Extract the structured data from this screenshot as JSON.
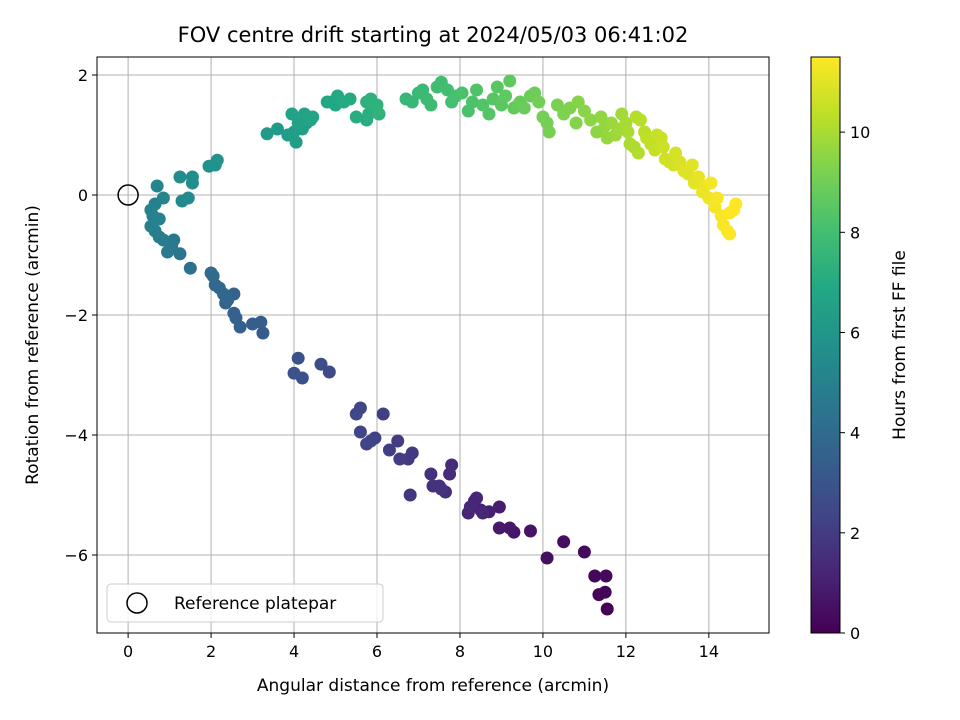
{
  "chart_data": {
    "type": "scatter",
    "title": "FOV centre drift starting at 2024/05/03 06:41:02",
    "xlabel": "Angular distance from reference (arcmin)",
    "ylabel": "Rotation from reference (arcmin)",
    "colorbar_label": "Hours from first FF file",
    "xlim": [
      -0.75,
      15.45
    ],
    "ylim": [
      -7.3,
      2.3
    ],
    "x_ticks": [
      "0",
      "2",
      "4",
      "6",
      "8",
      "10",
      "12",
      "14"
    ],
    "x_tick_values": [
      0,
      2,
      4,
      6,
      8,
      10,
      12,
      14
    ],
    "y_ticks": [
      "−6",
      "−4",
      "−2",
      "0",
      "2"
    ],
    "y_tick_values": [
      -6,
      -4,
      -2,
      0,
      2
    ],
    "colorbar_range": [
      0,
      11.5
    ],
    "colorbar_ticks": [
      "0",
      "2",
      "4",
      "6",
      "8",
      "10"
    ],
    "colorbar_tick_values": [
      0,
      2,
      4,
      6,
      8,
      10
    ],
    "colormap": "viridis",
    "grid": true,
    "legend": {
      "placement": "lower-left",
      "entries": [
        "Reference platepar"
      ]
    },
    "reference_point": {
      "x": 0,
      "y": 0
    },
    "points": [
      [
        11.55,
        -6.9,
        0.05
      ],
      [
        11.5,
        -6.62,
        0.1
      ],
      [
        11.35,
        -6.66,
        0.15
      ],
      [
        11.25,
        -6.35,
        0.2
      ],
      [
        11.52,
        -6.35,
        0.25
      ],
      [
        11.0,
        -5.95,
        0.3
      ],
      [
        10.5,
        -5.78,
        0.4
      ],
      [
        10.1,
        -6.05,
        0.5
      ],
      [
        9.7,
        -5.6,
        0.6
      ],
      [
        9.3,
        -5.62,
        0.7
      ],
      [
        9.2,
        -5.55,
        0.72
      ],
      [
        8.95,
        -5.55,
        0.8
      ],
      [
        8.95,
        -5.2,
        0.9
      ],
      [
        8.7,
        -5.28,
        1.0
      ],
      [
        8.5,
        -5.25,
        1.05
      ],
      [
        8.35,
        -5.1,
        1.1
      ],
      [
        8.2,
        -5.3,
        1.15
      ],
      [
        8.4,
        -5.05,
        1.2
      ],
      [
        8.25,
        -5.2,
        1.25
      ],
      [
        8.55,
        -5.3,
        1.3
      ],
      [
        7.8,
        -4.5,
        1.4
      ],
      [
        7.75,
        -4.65,
        1.45
      ],
      [
        7.65,
        -4.95,
        1.5
      ],
      [
        7.5,
        -4.85,
        1.55
      ],
      [
        7.3,
        -4.65,
        1.6
      ],
      [
        7.35,
        -4.85,
        1.65
      ],
      [
        7.55,
        -4.9,
        1.7
      ],
      [
        6.8,
        -5.0,
        1.8
      ],
      [
        6.85,
        -4.3,
        1.9
      ],
      [
        6.75,
        -4.4,
        1.95
      ],
      [
        6.5,
        -4.1,
        2.0
      ],
      [
        6.55,
        -4.4,
        2.05
      ],
      [
        6.3,
        -4.25,
        2.1
      ],
      [
        6.15,
        -3.65,
        2.15
      ],
      [
        5.95,
        -4.05,
        2.2
      ],
      [
        5.85,
        -4.1,
        2.25
      ],
      [
        5.75,
        -4.15,
        2.3
      ],
      [
        5.6,
        -3.95,
        2.35
      ],
      [
        5.6,
        -3.55,
        2.4
      ],
      [
        5.5,
        -3.65,
        2.45
      ],
      [
        4.85,
        -2.95,
        2.6
      ],
      [
        4.65,
        -2.82,
        2.7
      ],
      [
        4.2,
        -3.05,
        2.8
      ],
      [
        4.1,
        -2.72,
        2.85
      ],
      [
        4.0,
        -2.97,
        2.9
      ],
      [
        3.25,
        -2.3,
        3.3
      ],
      [
        3.2,
        -2.12,
        3.35
      ],
      [
        3.0,
        -2.15,
        3.4
      ],
      [
        2.7,
        -2.2,
        3.5
      ],
      [
        2.6,
        -2.05,
        3.55
      ],
      [
        2.55,
        -1.97,
        3.6
      ],
      [
        2.55,
        -1.65,
        3.65
      ],
      [
        2.35,
        -1.8,
        3.7
      ],
      [
        2.4,
        -1.75,
        3.75
      ],
      [
        2.3,
        -1.65,
        3.8
      ],
      [
        2.2,
        -1.55,
        3.85
      ],
      [
        2.1,
        -1.5,
        3.9
      ],
      [
        2.05,
        -1.35,
        3.95
      ],
      [
        2.0,
        -1.3,
        4.0
      ],
      [
        1.5,
        -1.22,
        4.3
      ],
      [
        1.25,
        -0.98,
        4.5
      ],
      [
        1.1,
        -0.75,
        4.6
      ],
      [
        1.05,
        -0.85,
        4.65
      ],
      [
        0.95,
        -0.95,
        4.7
      ],
      [
        0.85,
        -0.75,
        4.75
      ],
      [
        0.75,
        -0.7,
        4.8
      ],
      [
        0.65,
        -0.6,
        4.85
      ],
      [
        0.55,
        -0.52,
        4.9
      ],
      [
        0.6,
        -0.35,
        4.95
      ],
      [
        0.65,
        -0.15,
        5.0
      ],
      [
        0.75,
        -0.4,
        5.05
      ],
      [
        0.55,
        -0.25,
        5.1
      ],
      [
        0.85,
        -0.05,
        5.15
      ],
      [
        0.7,
        0.15,
        5.2
      ],
      [
        1.3,
        -0.1,
        5.4
      ],
      [
        1.45,
        -0.05,
        5.45
      ],
      [
        1.25,
        0.3,
        5.5
      ],
      [
        1.55,
        0.2,
        5.55
      ],
      [
        1.55,
        0.3,
        5.6
      ],
      [
        1.95,
        0.48,
        5.75
      ],
      [
        2.1,
        0.5,
        5.8
      ],
      [
        2.15,
        0.58,
        5.85
      ],
      [
        3.35,
        1.02,
        6.2
      ],
      [
        3.6,
        1.1,
        6.25
      ],
      [
        3.85,
        1.0,
        6.3
      ],
      [
        4.0,
        1.05,
        6.35
      ],
      [
        4.05,
        0.88,
        6.4
      ],
      [
        4.2,
        1.1,
        6.45
      ],
      [
        4.3,
        1.2,
        6.5
      ],
      [
        4.1,
        1.2,
        6.55
      ],
      [
        3.95,
        1.35,
        6.6
      ],
      [
        4.25,
        1.35,
        6.65
      ],
      [
        4.4,
        1.25,
        6.7
      ],
      [
        4.45,
        1.3,
        6.72
      ],
      [
        4.8,
        1.55,
        6.8
      ],
      [
        4.9,
        1.55,
        6.85
      ],
      [
        5.0,
        1.5,
        6.9
      ],
      [
        5.05,
        1.65,
        6.95
      ],
      [
        5.2,
        1.55,
        7.0
      ],
      [
        5.35,
        1.6,
        7.05
      ],
      [
        5.5,
        1.3,
        7.1
      ],
      [
        5.75,
        1.25,
        7.15
      ],
      [
        5.8,
        1.35,
        7.2
      ],
      [
        5.9,
        1.45,
        7.25
      ],
      [
        5.75,
        1.55,
        7.3
      ],
      [
        5.85,
        1.6,
        7.35
      ],
      [
        6.0,
        1.5,
        7.4
      ],
      [
        6.05,
        1.35,
        7.45
      ],
      [
        6.7,
        1.6,
        7.6
      ],
      [
        6.85,
        1.55,
        7.65
      ],
      [
        7.0,
        1.7,
        7.7
      ],
      [
        7.1,
        1.75,
        7.75
      ],
      [
        7.2,
        1.6,
        7.8
      ],
      [
        7.3,
        1.5,
        7.85
      ],
      [
        7.45,
        1.8,
        7.9
      ],
      [
        7.55,
        1.88,
        7.95
      ],
      [
        7.7,
        1.75,
        8.0
      ],
      [
        7.8,
        1.55,
        8.05
      ],
      [
        7.9,
        1.65,
        8.1
      ],
      [
        8.05,
        1.7,
        8.15
      ],
      [
        8.2,
        1.4,
        8.2
      ],
      [
        8.3,
        1.55,
        8.25
      ],
      [
        8.4,
        1.75,
        8.3
      ],
      [
        8.55,
        1.5,
        8.35
      ],
      [
        8.7,
        1.35,
        8.4
      ],
      [
        8.8,
        1.6,
        8.45
      ],
      [
        8.9,
        1.8,
        8.5
      ],
      [
        9.0,
        1.5,
        8.55
      ],
      [
        9.1,
        1.65,
        8.6
      ],
      [
        9.2,
        1.9,
        8.65
      ],
      [
        9.3,
        1.45,
        8.7
      ],
      [
        9.4,
        1.5,
        8.75
      ],
      [
        9.45,
        1.55,
        8.8
      ],
      [
        9.55,
        1.45,
        8.85
      ],
      [
        9.7,
        1.65,
        8.9
      ],
      [
        9.8,
        1.7,
        8.95
      ],
      [
        9.9,
        1.55,
        9.0
      ],
      [
        10.0,
        1.3,
        9.05
      ],
      [
        10.1,
        1.2,
        9.1
      ],
      [
        10.15,
        1.05,
        9.15
      ],
      [
        10.35,
        1.5,
        9.2
      ],
      [
        10.5,
        1.35,
        9.25
      ],
      [
        10.65,
        1.45,
        9.3
      ],
      [
        10.8,
        1.2,
        9.35
      ],
      [
        10.85,
        1.55,
        9.4
      ],
      [
        11.0,
        1.4,
        9.45
      ],
      [
        11.15,
        1.25,
        9.5
      ],
      [
        11.3,
        1.05,
        9.55
      ],
      [
        11.4,
        1.3,
        9.6
      ],
      [
        11.5,
        1.15,
        9.65
      ],
      [
        11.55,
        0.95,
        9.7
      ],
      [
        11.65,
        1.2,
        9.75
      ],
      [
        11.75,
        1.0,
        9.8
      ],
      [
        11.85,
        1.1,
        9.85
      ],
      [
        11.9,
        1.35,
        9.9
      ],
      [
        12.0,
        1.2,
        9.95
      ],
      [
        12.05,
        1.05,
        10.0
      ],
      [
        12.1,
        0.85,
        10.05
      ],
      [
        12.2,
        0.8,
        10.1
      ],
      [
        12.3,
        0.7,
        10.15
      ],
      [
        12.25,
        1.3,
        10.2
      ],
      [
        12.35,
        1.25,
        10.25
      ],
      [
        12.45,
        1.05,
        10.3
      ],
      [
        12.5,
        0.95,
        10.35
      ],
      [
        12.6,
        0.85,
        10.4
      ],
      [
        12.7,
        0.75,
        10.45
      ],
      [
        12.75,
        1.0,
        10.5
      ],
      [
        12.85,
        0.95,
        10.55
      ],
      [
        12.9,
        0.8,
        10.6
      ],
      [
        12.95,
        0.6,
        10.65
      ],
      [
        13.05,
        0.55,
        10.7
      ],
      [
        13.15,
        0.5,
        10.75
      ],
      [
        13.2,
        0.7,
        10.8
      ],
      [
        13.3,
        0.55,
        10.85
      ],
      [
        13.4,
        0.4,
        10.9
      ],
      [
        13.5,
        0.35,
        10.95
      ],
      [
        13.6,
        0.5,
        11.0
      ],
      [
        13.65,
        0.2,
        11.05
      ],
      [
        13.75,
        0.3,
        11.1
      ],
      [
        13.85,
        0.05,
        11.15
      ],
      [
        13.9,
        0.15,
        11.2
      ],
      [
        14.0,
        -0.05,
        11.25
      ],
      [
        14.05,
        0.2,
        11.3
      ],
      [
        14.15,
        -0.2,
        11.35
      ],
      [
        14.2,
        -0.05,
        11.38
      ],
      [
        14.3,
        -0.35,
        11.4
      ],
      [
        14.35,
        -0.5,
        11.42
      ],
      [
        14.45,
        -0.6,
        11.44
      ],
      [
        14.5,
        -0.65,
        11.46
      ],
      [
        14.6,
        -0.25,
        11.48
      ],
      [
        14.65,
        -0.15,
        11.5
      ],
      [
        14.5,
        -0.3,
        11.5
      ]
    ]
  }
}
